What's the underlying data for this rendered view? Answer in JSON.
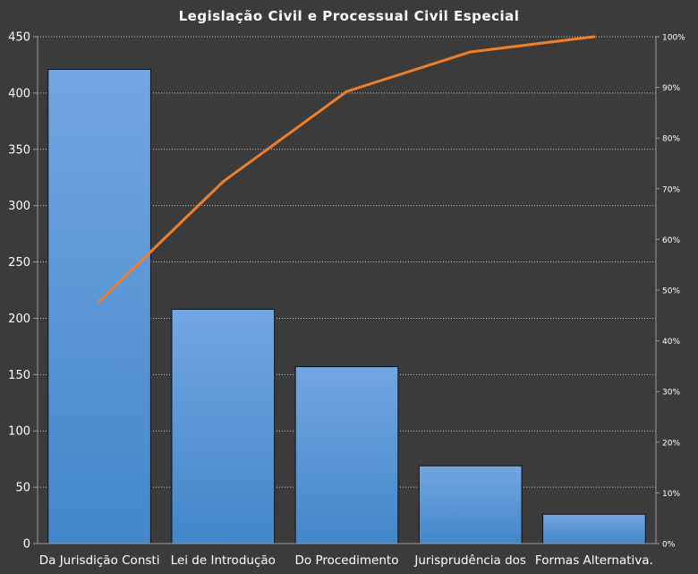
{
  "colors": {
    "background": "#3b3b3b",
    "bar_fill_top": "#73a6e2",
    "bar_fill_bottom": "#4287c9",
    "bar_stroke": "#111111",
    "line": "#f07f2c",
    "gridline": "#c8c8c8",
    "text": "#ffffff"
  },
  "chart_data": {
    "type": "bar",
    "title": "Legislação Civil e Processual Civil Especial",
    "categories": [
      "Da Jurisdição Consti",
      "Lei de Introdução",
      "Do Procedimento",
      "Jurisprudência dos",
      "Formas Alternativa."
    ],
    "values": [
      421,
      208,
      157,
      69,
      26
    ],
    "cumulative_percent": [
      47.8,
      71.4,
      89.2,
      97.0,
      100.0
    ],
    "ylim": [
      0,
      450
    ],
    "yticks": [
      0,
      50,
      100,
      150,
      200,
      250,
      300,
      350,
      400,
      450
    ],
    "y2lim": [
      0,
      100
    ],
    "y2ticks": [
      "0%",
      "10%",
      "20%",
      "30%",
      "40%",
      "50%",
      "60%",
      "70%",
      "80%",
      "90%",
      "100%"
    ],
    "grid": true,
    "legend": "none"
  }
}
